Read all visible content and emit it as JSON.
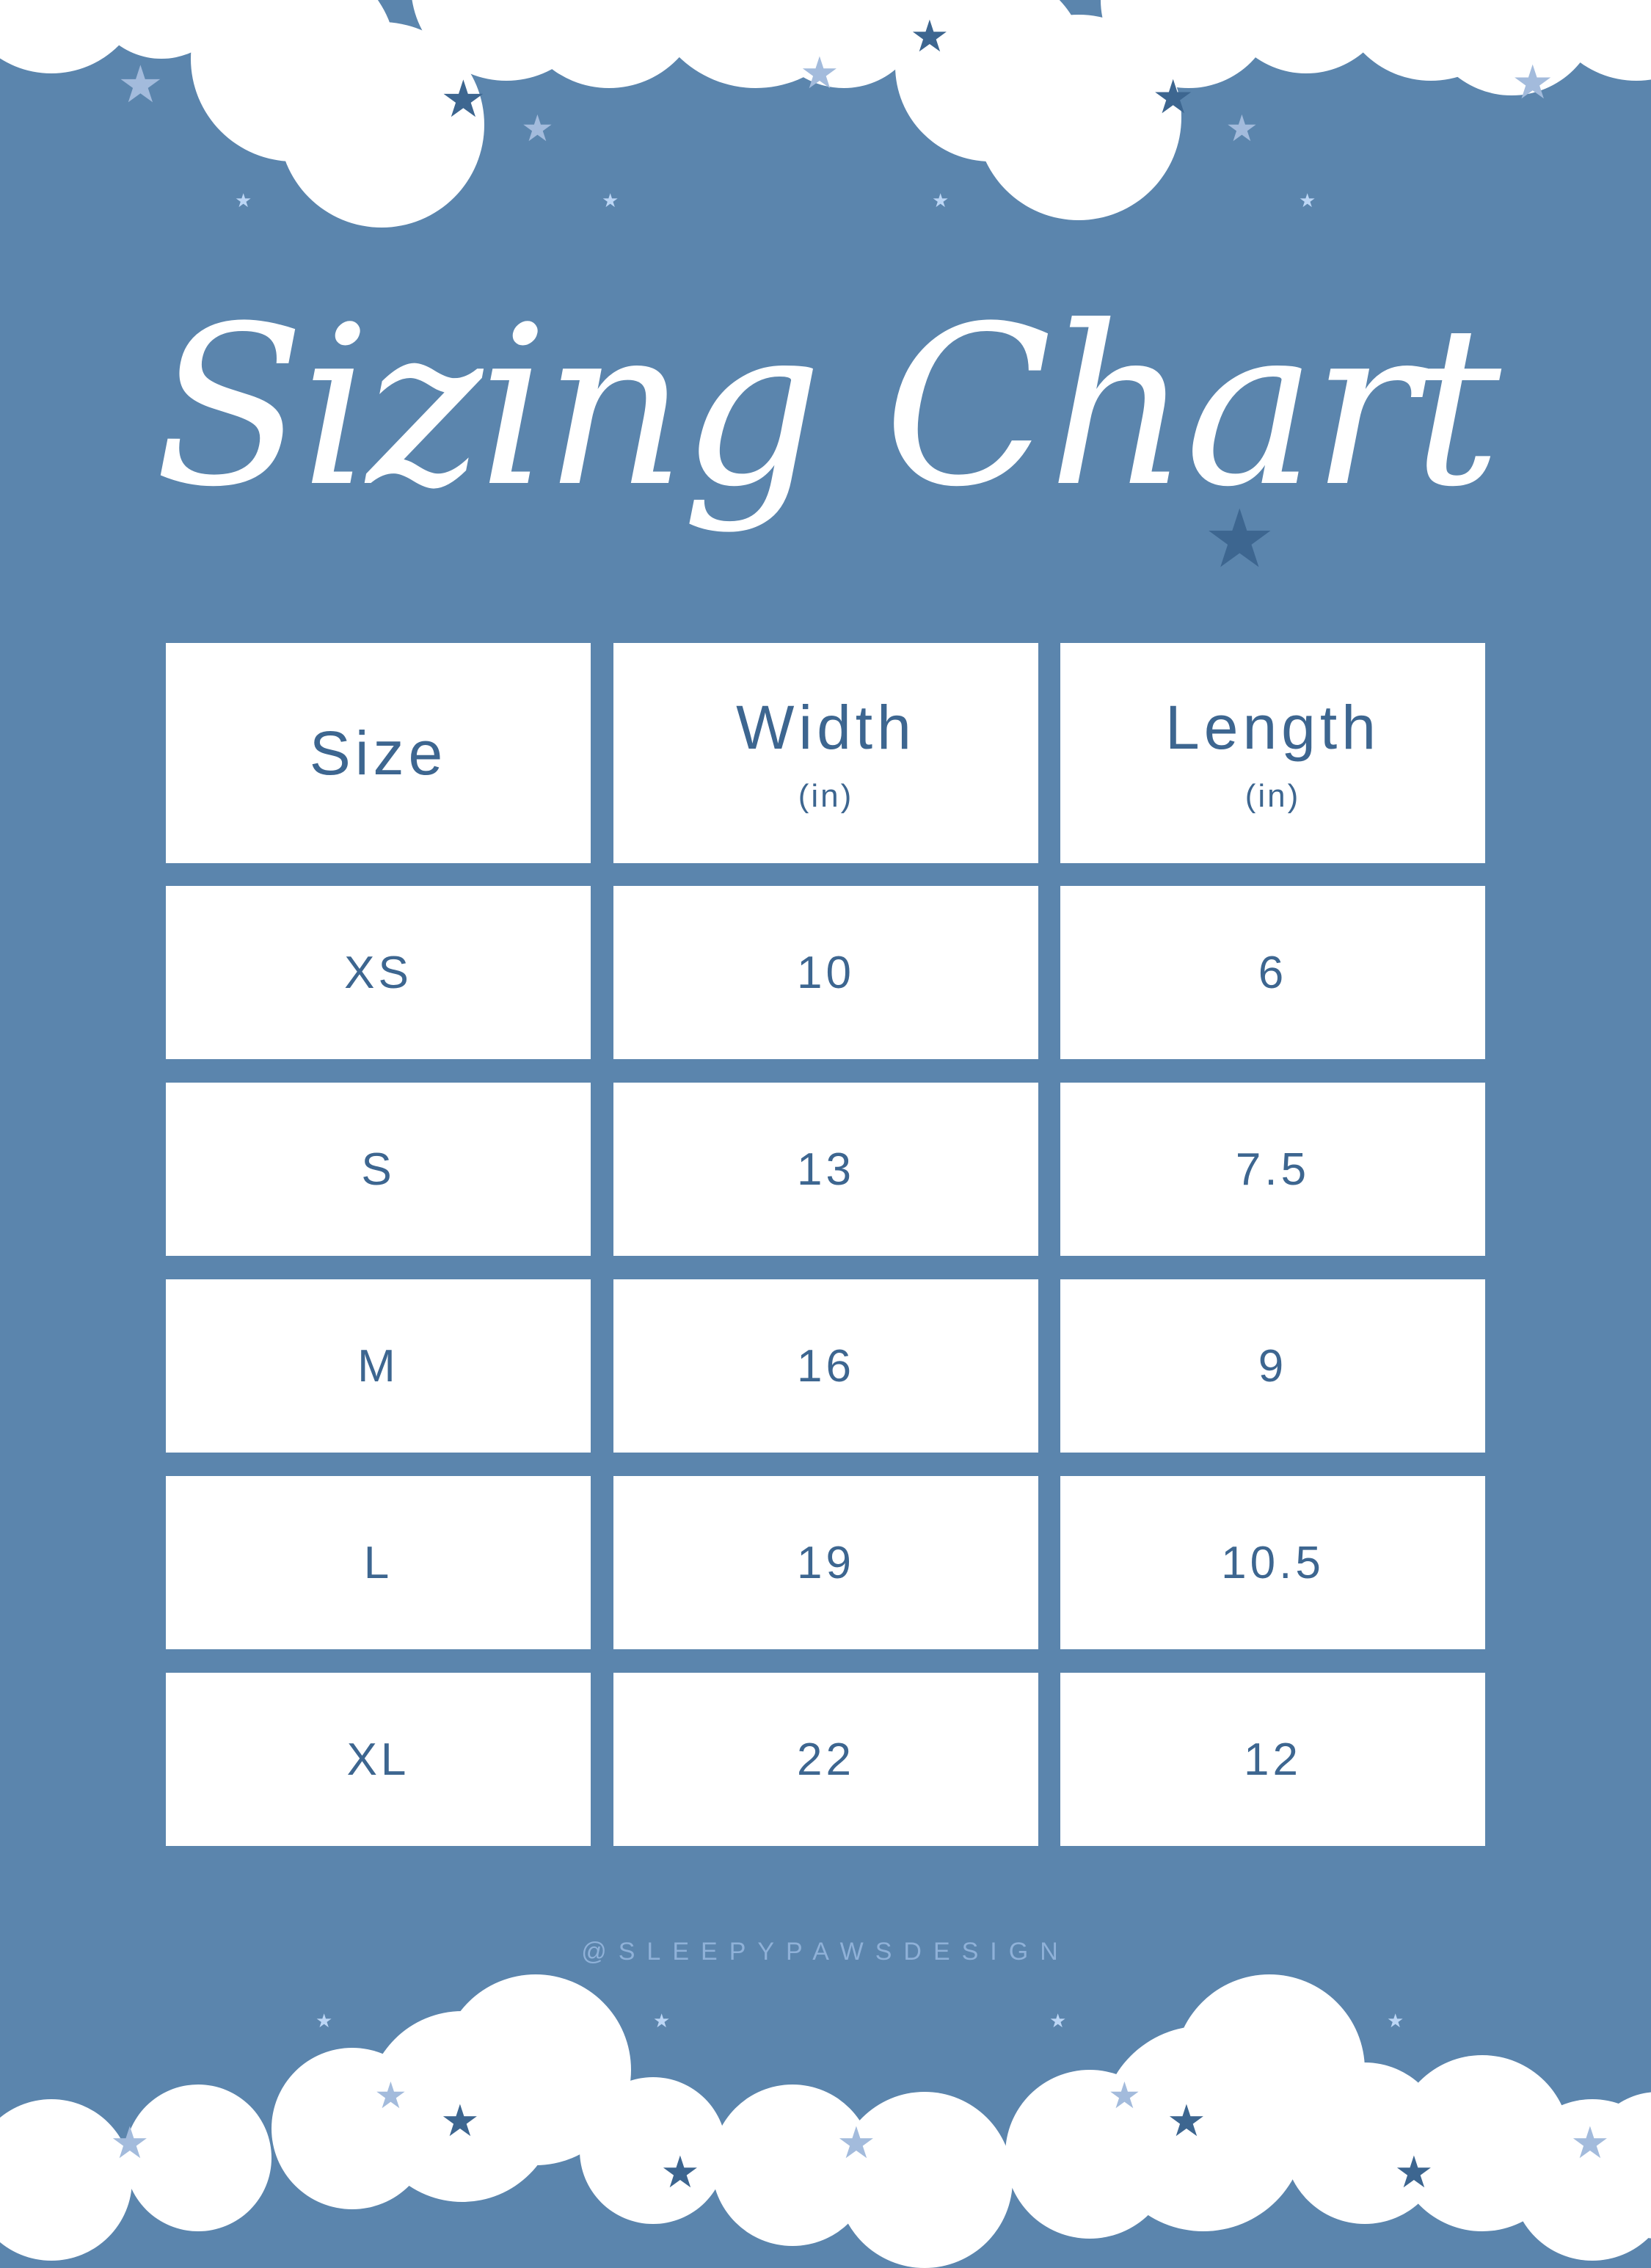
{
  "title": "Sizing Chart",
  "table": {
    "headers": [
      {
        "label": "Size",
        "unit": ""
      },
      {
        "label": "Width",
        "unit": "(in)"
      },
      {
        "label": "Length",
        "unit": "(in)"
      }
    ],
    "rows": [
      [
        "XS",
        "10",
        "6"
      ],
      [
        "S",
        "13",
        "7.5"
      ],
      [
        "M",
        "16",
        "9"
      ],
      [
        "L",
        "19",
        "10.5"
      ],
      [
        "XL",
        "22",
        "12"
      ]
    ]
  },
  "watermark": "@SLEEPYPAWSDESIGN",
  "colors": {
    "background": "#5b85ad",
    "text": "#3d6690",
    "cell": "#ffffff",
    "star_dark": "#3d6690",
    "star_light": "#a3bbdc"
  }
}
